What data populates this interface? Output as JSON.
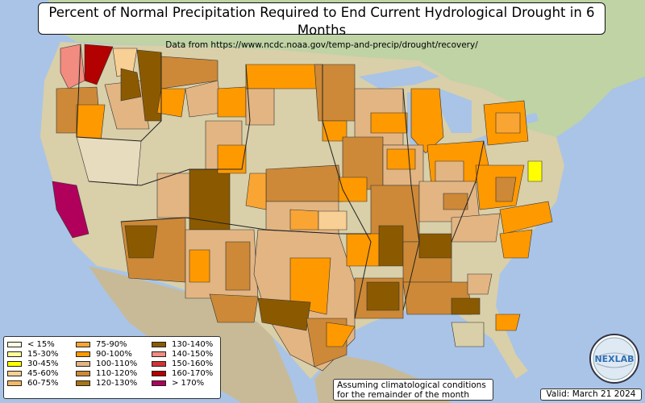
{
  "header": {
    "title": "Percent of Normal Precipitation Required to End Current Hydrological Drought in 6 Months",
    "subtitle": "Data from https://www.ncdc.noaa.gov/temp-and-precip/drought/recovery/"
  },
  "legend": {
    "items": [
      {
        "label": "< 15%",
        "color": "#ffffe0"
      },
      {
        "label": "15-30%",
        "color": "#ffff9a"
      },
      {
        "label": "30-45%",
        "color": "#ffff00"
      },
      {
        "label": "45-60%",
        "color": "#f8cf94"
      },
      {
        "label": "60-75%",
        "color": "#f7b766"
      },
      {
        "label": "75-90%",
        "color": "#f9a534"
      },
      {
        "label": "90-100%",
        "color": "#ff9900"
      },
      {
        "label": "100-110%",
        "color": "#e2b583"
      },
      {
        "label": "110-120%",
        "color": "#cd8937"
      },
      {
        "label": "120-130%",
        "color": "#aa7413"
      },
      {
        "label": "130-140%",
        "color": "#8b5a00"
      },
      {
        "label": "140-150%",
        "color": "#f28b80"
      },
      {
        "label": "150-160%",
        "color": "#d43333"
      },
      {
        "label": "160-170%",
        "color": "#b30000"
      },
      {
        "label": "> 170%",
        "color": "#b0005c"
      }
    ]
  },
  "notes": {
    "assumption": "Assuming climatological conditions for the remainder of the month",
    "valid": "Valid: March 21 2024"
  },
  "logo": {
    "text": "NEXLAB"
  }
}
